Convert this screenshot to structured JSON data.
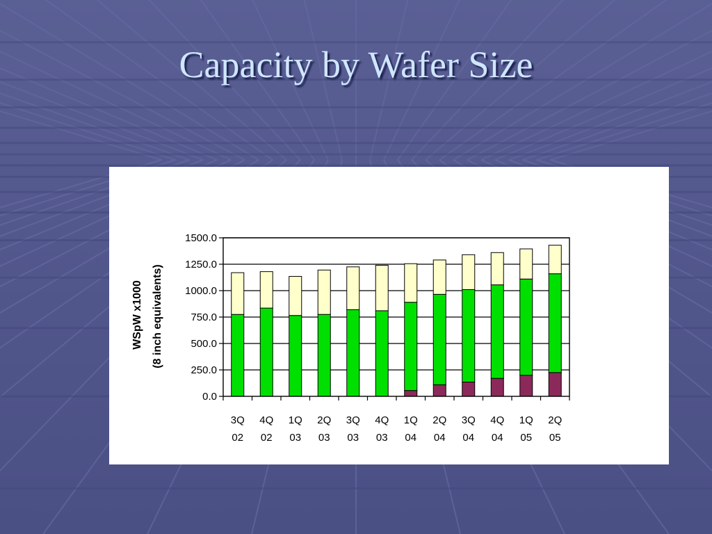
{
  "slide": {
    "title": "Capacity by Wafer Size"
  },
  "colors": {
    "background": "#565b90",
    "title": "#cfe6ff",
    "seg_bottom": "#8b2a5a",
    "seg_middle": "#00e000",
    "seg_top": "#ffffcc"
  },
  "chart_data": {
    "type": "bar",
    "stacked": true,
    "categories": [
      "3Q 02",
      "4Q 02",
      "1Q 03",
      "2Q 03",
      "3Q 03",
      "4Q 03",
      "1Q 04",
      "2Q 04",
      "3Q 04",
      "4Q 04",
      "1Q 05",
      "2Q 05"
    ],
    "category_lines": [
      [
        "3Q",
        "02"
      ],
      [
        "4Q",
        "02"
      ],
      [
        "1Q",
        "03"
      ],
      [
        "2Q",
        "03"
      ],
      [
        "3Q",
        "03"
      ],
      [
        "4Q",
        "03"
      ],
      [
        "1Q",
        "04"
      ],
      [
        "2Q",
        "04"
      ],
      [
        "3Q",
        "04"
      ],
      [
        "4Q",
        "04"
      ],
      [
        "1Q",
        "05"
      ],
      [
        "2Q",
        "05"
      ]
    ],
    "series": [
      {
        "values": [
          0,
          0,
          0,
          0,
          0,
          0,
          55,
          110,
          135,
          170,
          200,
          225
        ],
        "color": "#8b2a5a"
      },
      {
        "values": [
          775,
          835,
          765,
          775,
          820,
          810,
          835,
          855,
          875,
          885,
          910,
          935
        ],
        "color": "#00e000"
      },
      {
        "values": [
          395,
          345,
          370,
          420,
          405,
          430,
          365,
          325,
          330,
          305,
          285,
          270
        ],
        "color": "#ffffcc"
      }
    ],
    "ylabel_lines": [
      "WSpW x1000",
      "(8 inch equivalents)"
    ],
    "ylim": [
      0,
      1500
    ],
    "yticks": [
      "0.0",
      "250.0",
      "500.0",
      "750.0",
      "1000.0",
      "1250.0",
      "1500.0"
    ],
    "grid": true,
    "legend": "none"
  }
}
